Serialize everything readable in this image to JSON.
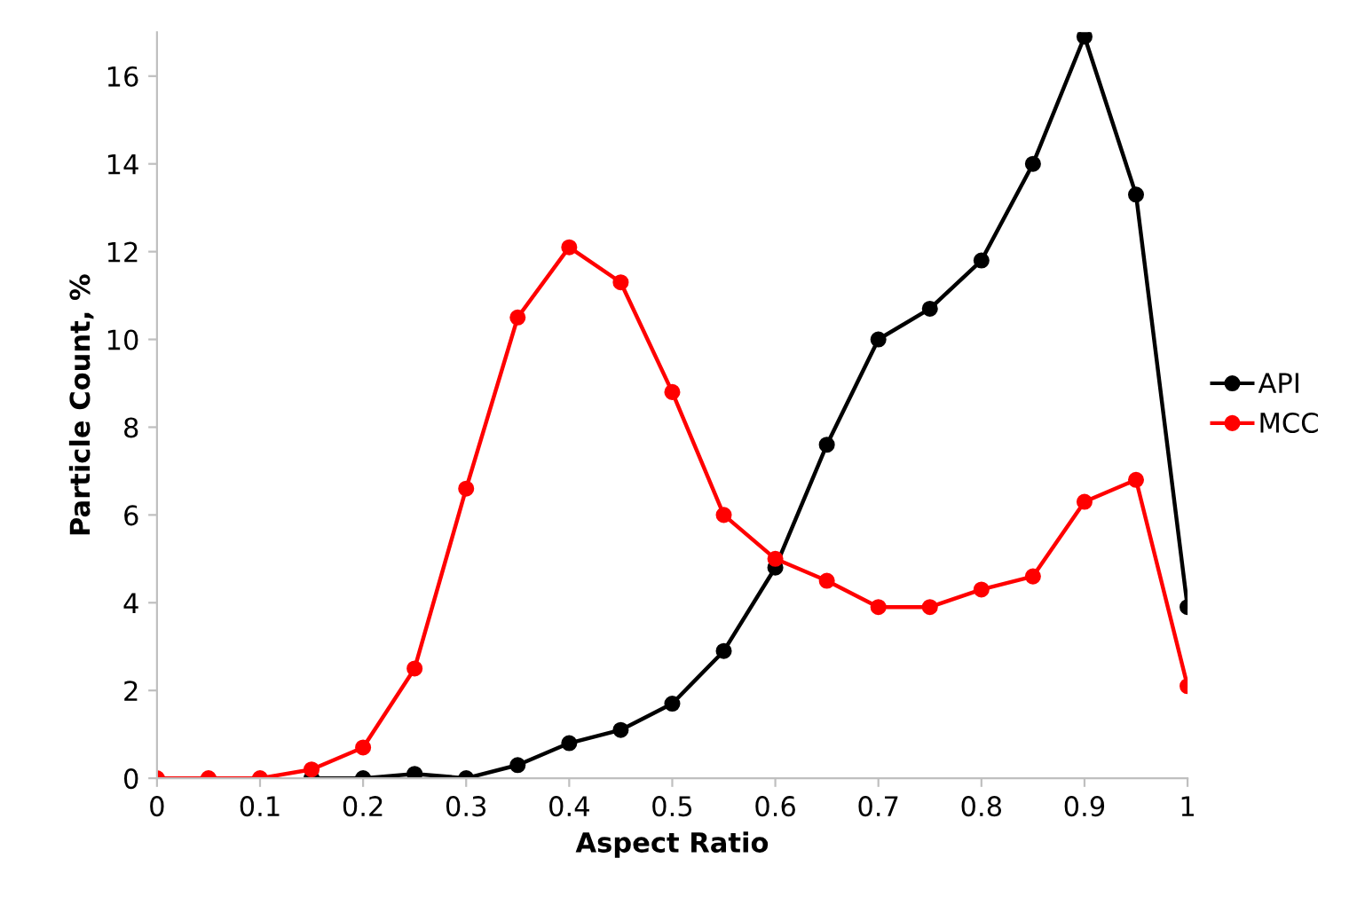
{
  "chart_data": {
    "type": "line",
    "xlabel": "Aspect Ratio",
    "ylabel": "Particle Count, %",
    "xlim": [
      0,
      1
    ],
    "xticks": [
      0,
      0.1,
      0.2,
      0.3,
      0.4,
      0.5,
      0.6,
      0.7,
      0.8,
      0.9,
      1
    ],
    "ylim": [
      0,
      17
    ],
    "yticks": [
      0,
      2,
      4,
      6,
      8,
      10,
      12,
      14,
      16
    ],
    "grid": false,
    "legend": "right",
    "marker": "circle",
    "line_style": "solid",
    "series": [
      {
        "name": "API",
        "color": "#000000",
        "x": [
          0.15,
          0.2,
          0.25,
          0.3,
          0.35,
          0.4,
          0.45,
          0.5,
          0.55,
          0.6,
          0.65,
          0.7,
          0.75,
          0.8,
          0.85,
          0.9,
          0.95,
          1
        ],
        "values": [
          0,
          0,
          0.1,
          0.0,
          0.3,
          0.8,
          1.1,
          1.7,
          2.9,
          4.8,
          7.6,
          10.0,
          10.7,
          11.8,
          14.0,
          16.9,
          13.3,
          3.9
        ]
      },
      {
        "name": "MCC",
        "color": "#ff0000",
        "x": [
          0,
          0.05,
          0.1,
          0.15,
          0.2,
          0.25,
          0.3,
          0.35,
          0.4,
          0.45,
          0.5,
          0.55,
          0.6,
          0.65,
          0.7,
          0.75,
          0.8,
          0.85,
          0.9,
          0.95,
          1
        ],
        "values": [
          0,
          0,
          0,
          0.2,
          0.7,
          2.5,
          6.6,
          10.5,
          12.1,
          11.3,
          8.8,
          6.0,
          5.0,
          4.5,
          3.9,
          3.9,
          4.3,
          4.6,
          6.3,
          6.8,
          2.1
        ]
      }
    ]
  }
}
